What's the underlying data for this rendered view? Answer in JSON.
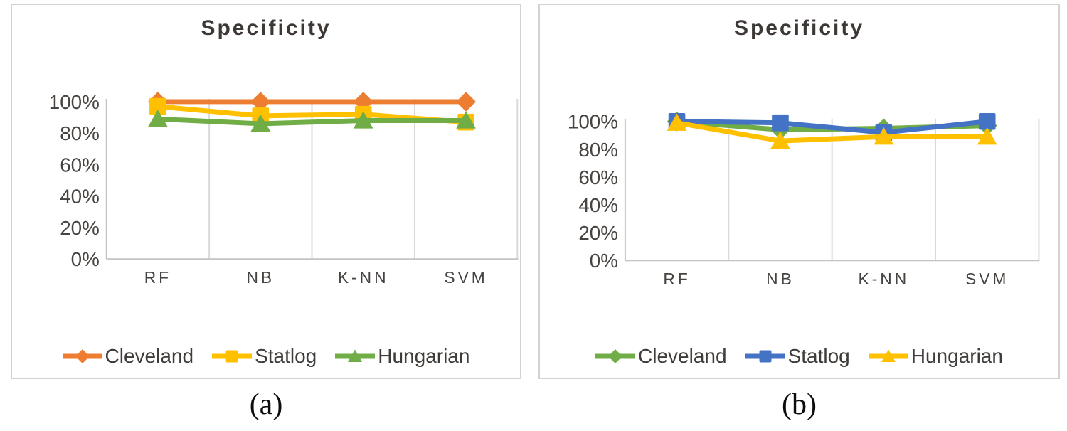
{
  "chart_data": [
    {
      "id": "a",
      "type": "line",
      "title": "Specificity",
      "caption": "(a)",
      "categories": [
        "RF",
        "NB",
        "K-NN",
        "SVM"
      ],
      "y_ticks": [
        "100%",
        "80%",
        "60%",
        "40%",
        "20%",
        "0%"
      ],
      "ylim": [
        0,
        100
      ],
      "grid": "vertical-category-boundaries",
      "legend_position": "bottom",
      "series": [
        {
          "name": "Cleveland",
          "marker": "diamond",
          "color": "#ED7D31",
          "values": [
            100,
            100,
            100,
            100
          ]
        },
        {
          "name": "Statlog",
          "marker": "square",
          "color": "#FFC000",
          "values": [
            97,
            91,
            92,
            87
          ]
        },
        {
          "name": "Hungarian",
          "marker": "triangle",
          "color": "#70AD47",
          "values": [
            89,
            86,
            88,
            88
          ]
        }
      ]
    },
    {
      "id": "b",
      "type": "line",
      "title": "Specificity",
      "caption": "(b)",
      "categories": [
        "RF",
        "NB",
        "K-NN",
        "SVM"
      ],
      "y_ticks": [
        "100%",
        "80%",
        "60%",
        "40%",
        "20%",
        "0%"
      ],
      "ylim": [
        0,
        100
      ],
      "grid": "vertical-category-boundaries",
      "legend_position": "bottom",
      "series": [
        {
          "name": "Cleveland",
          "marker": "diamond",
          "color": "#70AD47",
          "values": [
            100,
            94,
            95,
            97
          ]
        },
        {
          "name": "Statlog",
          "marker": "square",
          "color": "#4472C4",
          "values": [
            100,
            99,
            92,
            100
          ]
        },
        {
          "name": "Hungarian",
          "marker": "triangle",
          "color": "#FFC000",
          "values": [
            99,
            86,
            89,
            89
          ]
        }
      ]
    }
  ],
  "style": {
    "gridline_color": "#d9d9d9",
    "axis_color": "#c6c3c1",
    "tick_label_color": "#474340",
    "title_color": "#3d3835"
  }
}
